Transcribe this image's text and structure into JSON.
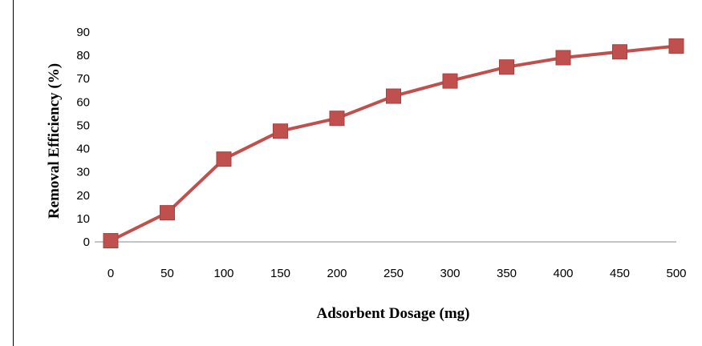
{
  "chart_data": {
    "type": "line",
    "title": "",
    "xlabel": "Adsorbent Dosage (mg)",
    "ylabel": "Removal Efficiency (%)",
    "x": [
      0,
      50,
      100,
      150,
      200,
      250,
      300,
      350,
      400,
      450,
      500
    ],
    "series": [
      {
        "values": [
          0.5,
          12.5,
          35.5,
          47.5,
          53,
          62.5,
          69,
          75,
          79,
          81.5,
          84
        ],
        "color": "#c0504d"
      }
    ],
    "xticks": [
      "0",
      "50",
      "100",
      "150",
      "200",
      "250",
      "300",
      "350",
      "400",
      "450",
      "500"
    ],
    "yticks": [
      "0",
      "10",
      "20",
      "30",
      "40",
      "50",
      "60",
      "70",
      "80",
      "90"
    ],
    "ylim": [
      0,
      90
    ],
    "grid": false,
    "legend": "none",
    "marker": "square"
  }
}
